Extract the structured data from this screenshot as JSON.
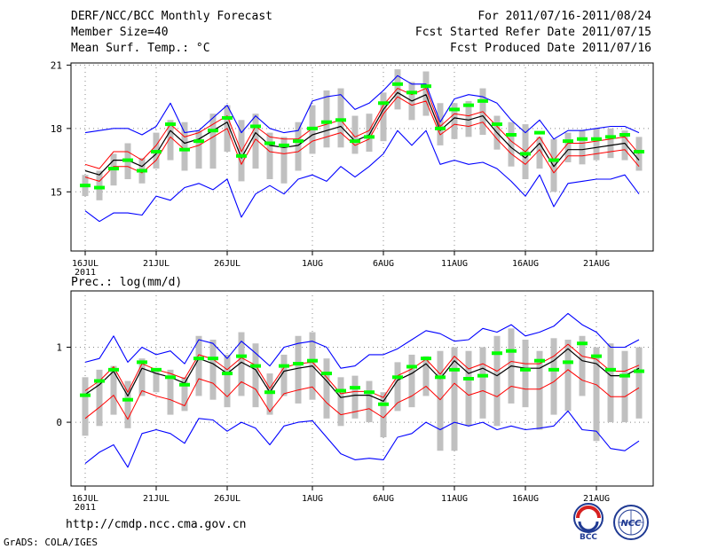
{
  "header": {
    "title": "DERF/NCC/BCC Monthly Forecast",
    "member_size": "Member Size=40",
    "period": "For 2011/07/16-2011/08/24",
    "fcst_started": "Fcst Started Refer Date 2011/07/15",
    "fcst_produced": "Fcst Produced Date 2011/07/16"
  },
  "footer": {
    "url": "http://cmdp.ncc.cma.gov.cn",
    "credit": "GrADS: COLA/IGES",
    "logo1_text": "BCC",
    "logo2_text": "NCC"
  },
  "colors": {
    "ensemble_mean": "#000000",
    "member_spread": "#ff0000",
    "extreme_envelope": "#0000ff",
    "observation_marker": "#00ff00",
    "range_bar": "#c0c0c0"
  },
  "chart_data": [
    {
      "type": "line",
      "title": "Mean Surf. Temp.: °C",
      "x_tick_labels": [
        "16JUL",
        "21JUL",
        "26JUL",
        "1AUG",
        "6AUG",
        "11AUG",
        "16AUG",
        "21AUG"
      ],
      "x_tick_days": [
        1,
        6,
        11,
        17,
        22,
        27,
        32,
        37
      ],
      "x_year_label": "2011",
      "x_range": [
        1,
        40
      ],
      "ylim": [
        12.2,
        21.1
      ],
      "y_ticks": [
        15,
        18,
        21
      ],
      "series": [
        {
          "name": "ensemble mean",
          "values": [
            16.0,
            15.8,
            16.5,
            16.5,
            16.2,
            16.8,
            17.9,
            17.3,
            17.5,
            17.9,
            18.3,
            16.6,
            17.8,
            17.2,
            17.1,
            17.2,
            17.7,
            17.9,
            18.1,
            17.4,
            17.7,
            18.9,
            19.7,
            19.3,
            19.6,
            17.9,
            18.5,
            18.4,
            18.6,
            17.8,
            17.1,
            16.6,
            17.3,
            16.2,
            17.0,
            17.0,
            17.1,
            17.2,
            17.3,
            16.5
          ]
        },
        {
          "name": "member upper",
          "values": [
            16.3,
            16.1,
            16.9,
            16.9,
            16.5,
            17.2,
            18.2,
            17.6,
            17.8,
            18.2,
            18.6,
            16.9,
            18.1,
            17.6,
            17.5,
            17.5,
            18.0,
            18.2,
            18.4,
            17.6,
            17.9,
            19.1,
            19.9,
            19.6,
            19.9,
            18.1,
            18.7,
            18.6,
            18.8,
            18.1,
            17.4,
            16.9,
            17.6,
            16.5,
            17.3,
            17.3,
            17.4,
            17.5,
            17.6,
            16.8
          ]
        },
        {
          "name": "member lower",
          "values": [
            15.7,
            15.5,
            16.2,
            16.2,
            15.9,
            16.5,
            17.6,
            17.0,
            17.2,
            17.6,
            18.0,
            16.3,
            17.5,
            16.9,
            16.8,
            16.9,
            17.4,
            17.6,
            17.8,
            17.2,
            17.5,
            18.7,
            19.5,
            19.1,
            19.3,
            17.7,
            18.2,
            18.1,
            18.3,
            17.5,
            16.8,
            16.3,
            17.0,
            15.9,
            16.7,
            16.7,
            16.8,
            16.9,
            17.0,
            16.2
          ]
        },
        {
          "name": "max",
          "values": [
            17.8,
            17.9,
            18.0,
            18.0,
            17.7,
            18.1,
            19.2,
            17.8,
            17.9,
            18.5,
            19.1,
            17.8,
            18.6,
            18.0,
            17.8,
            17.9,
            19.3,
            19.5,
            19.6,
            18.9,
            19.2,
            19.8,
            20.5,
            20.1,
            20.1,
            18.3,
            19.4,
            19.6,
            19.5,
            19.2,
            18.4,
            17.8,
            18.4,
            17.5,
            17.9,
            17.9,
            18.0,
            18.1,
            18.1,
            17.8
          ]
        },
        {
          "name": "min",
          "values": [
            14.1,
            13.6,
            14.0,
            14.0,
            13.9,
            14.8,
            14.6,
            15.2,
            15.4,
            15.1,
            15.6,
            13.8,
            14.9,
            15.3,
            14.9,
            15.6,
            15.8,
            15.5,
            16.2,
            15.7,
            16.2,
            16.8,
            17.9,
            17.2,
            17.9,
            16.3,
            16.5,
            16.3,
            16.4,
            16.1,
            15.5,
            14.8,
            15.8,
            14.3,
            15.4,
            15.5,
            15.6,
            15.6,
            15.8,
            14.9
          ]
        },
        {
          "name": "observed/forecast marker",
          "values": [
            15.3,
            15.2,
            16.1,
            16.5,
            16.0,
            16.9,
            18.2,
            17.0,
            17.4,
            17.9,
            18.5,
            16.7,
            18.1,
            17.3,
            17.2,
            17.4,
            18.0,
            18.3,
            18.4,
            17.4,
            17.6,
            19.2,
            20.1,
            19.7,
            20.0,
            18.0,
            18.9,
            19.1,
            19.3,
            18.2,
            17.7,
            16.8,
            17.8,
            16.5,
            17.4,
            17.5,
            17.5,
            17.6,
            17.7,
            16.9
          ]
        },
        {
          "name": "range bar top",
          "values": [
            15.8,
            16.0,
            16.8,
            17.3,
            16.6,
            17.8,
            18.4,
            18.3,
            17.9,
            18.7,
            19.1,
            18.4,
            18.7,
            17.8,
            17.6,
            18.3,
            19.1,
            19.8,
            19.9,
            18.6,
            18.7,
            19.7,
            20.8,
            20.2,
            20.7,
            19.2,
            19.2,
            19.3,
            19.9,
            18.6,
            18.3,
            18.2,
            17.6,
            17.5,
            17.8,
            17.9,
            18.0,
            18.0,
            17.9,
            17.6
          ]
        },
        {
          "name": "range bar bottom",
          "values": [
            14.8,
            14.6,
            15.3,
            15.6,
            15.4,
            16.1,
            16.5,
            16.0,
            16.1,
            16.1,
            16.9,
            15.5,
            16.1,
            15.6,
            15.4,
            16.0,
            16.8,
            17.1,
            17.1,
            16.8,
            16.9,
            17.4,
            18.9,
            18.4,
            18.6,
            17.2,
            17.5,
            17.6,
            17.7,
            17.0,
            16.2,
            15.6,
            16.1,
            15.0,
            16.4,
            16.3,
            16.5,
            16.6,
            16.5,
            16.0
          ]
        }
      ]
    },
    {
      "type": "line",
      "title": "Prec.: log(mm/d)",
      "x_tick_labels": [
        "16JUL",
        "21JUL",
        "26JUL",
        "1AUG",
        "6AUG",
        "11AUG",
        "16AUG",
        "21AUG"
      ],
      "x_tick_days": [
        1,
        6,
        11,
        17,
        22,
        27,
        32,
        37
      ],
      "x_year_label": "2011",
      "x_range": [
        1,
        40
      ],
      "ylim": [
        -0.85,
        1.75
      ],
      "y_ticks": [
        0,
        1
      ],
      "series": [
        {
          "name": "ensemble mean",
          "values": [
            0.37,
            0.5,
            0.68,
            0.35,
            0.72,
            0.65,
            0.6,
            0.52,
            0.85,
            0.78,
            0.65,
            0.8,
            0.7,
            0.4,
            0.68,
            0.72,
            0.75,
            0.55,
            0.33,
            0.36,
            0.36,
            0.28,
            0.56,
            0.65,
            0.78,
            0.58,
            0.82,
            0.65,
            0.72,
            0.62,
            0.75,
            0.72,
            0.72,
            0.82,
            0.98,
            0.82,
            0.78,
            0.62,
            0.62,
            0.72
          ]
        },
        {
          "name": "member upper",
          "values": [
            0.42,
            0.55,
            0.74,
            0.4,
            0.78,
            0.7,
            0.65,
            0.58,
            0.9,
            0.84,
            0.7,
            0.86,
            0.76,
            0.45,
            0.73,
            0.78,
            0.8,
            0.6,
            0.38,
            0.41,
            0.41,
            0.33,
            0.62,
            0.71,
            0.84,
            0.64,
            0.88,
            0.71,
            0.78,
            0.68,
            0.81,
            0.78,
            0.78,
            0.88,
            1.04,
            0.88,
            0.84,
            0.68,
            0.68,
            0.76
          ]
        },
        {
          "name": "member lower",
          "values": [
            0.05,
            0.2,
            0.36,
            0.04,
            0.42,
            0.35,
            0.3,
            0.22,
            0.58,
            0.52,
            0.34,
            0.54,
            0.44,
            0.14,
            0.38,
            0.43,
            0.47,
            0.26,
            0.1,
            0.14,
            0.18,
            0.06,
            0.26,
            0.35,
            0.48,
            0.3,
            0.52,
            0.36,
            0.42,
            0.34,
            0.48,
            0.44,
            0.44,
            0.54,
            0.7,
            0.56,
            0.5,
            0.34,
            0.34,
            0.46
          ]
        },
        {
          "name": "max",
          "values": [
            0.8,
            0.85,
            1.15,
            0.8,
            1.0,
            0.9,
            0.95,
            0.78,
            1.1,
            1.05,
            0.85,
            1.08,
            0.92,
            0.75,
            1.0,
            1.05,
            1.08,
            1.0,
            0.72,
            0.75,
            0.9,
            0.9,
            0.98,
            1.1,
            1.22,
            1.18,
            1.08,
            1.1,
            1.25,
            1.2,
            1.3,
            1.15,
            1.2,
            1.28,
            1.45,
            1.3,
            1.2,
            1.0,
            1.0,
            1.1
          ]
        },
        {
          "name": "min",
          "values": [
            -0.55,
            -0.4,
            -0.3,
            -0.6,
            -0.15,
            -0.1,
            -0.15,
            -0.28,
            0.05,
            0.03,
            -0.12,
            0.0,
            -0.08,
            -0.3,
            -0.05,
            0.0,
            0.02,
            -0.2,
            -0.42,
            -0.5,
            -0.48,
            -0.5,
            -0.2,
            -0.15,
            0.0,
            -0.1,
            0.0,
            -0.05,
            0.0,
            -0.1,
            -0.05,
            -0.1,
            -0.08,
            -0.05,
            0.15,
            -0.1,
            -0.12,
            -0.35,
            -0.38,
            -0.25
          ]
        },
        {
          "name": "observed/forecast marker",
          "values": [
            0.36,
            0.55,
            0.7,
            0.3,
            0.8,
            0.7,
            0.6,
            0.5,
            0.85,
            0.85,
            0.65,
            0.88,
            0.75,
            0.4,
            0.75,
            0.78,
            0.82,
            0.65,
            0.42,
            0.46,
            0.4,
            0.24,
            0.6,
            0.74,
            0.85,
            0.6,
            0.7,
            0.58,
            0.62,
            0.92,
            0.95,
            0.7,
            0.82,
            0.7,
            0.8,
            1.05,
            0.88,
            0.7,
            0.62,
            0.68
          ]
        },
        {
          "name": "range bar top",
          "values": [
            0.6,
            0.7,
            0.75,
            0.55,
            0.85,
            0.72,
            0.7,
            0.6,
            1.15,
            1.1,
            0.9,
            1.2,
            1.05,
            0.65,
            0.9,
            1.15,
            1.2,
            0.85,
            0.6,
            0.62,
            0.55,
            0.4,
            0.8,
            0.9,
            0.88,
            0.95,
            1.0,
            0.95,
            1.0,
            1.15,
            1.25,
            1.1,
            0.95,
            1.12,
            1.1,
            1.15,
            1.0,
            1.05,
            0.95,
            1.0
          ]
        },
        {
          "name": "range bar bottom",
          "values": [
            -0.18,
            -0.05,
            0.1,
            -0.08,
            0.35,
            0.4,
            0.1,
            0.15,
            0.35,
            0.3,
            0.2,
            0.35,
            0.2,
            0.1,
            0.35,
            0.25,
            0.3,
            0.05,
            -0.05,
            0.05,
            0.0,
            -0.2,
            0.15,
            0.2,
            0.35,
            -0.38,
            -0.38,
            -0.05,
            0.05,
            -0.05,
            0.25,
            0.2,
            -0.1,
            0.1,
            0.15,
            0.35,
            -0.25,
            0.0,
            0.0,
            0.05
          ]
        }
      ]
    }
  ]
}
